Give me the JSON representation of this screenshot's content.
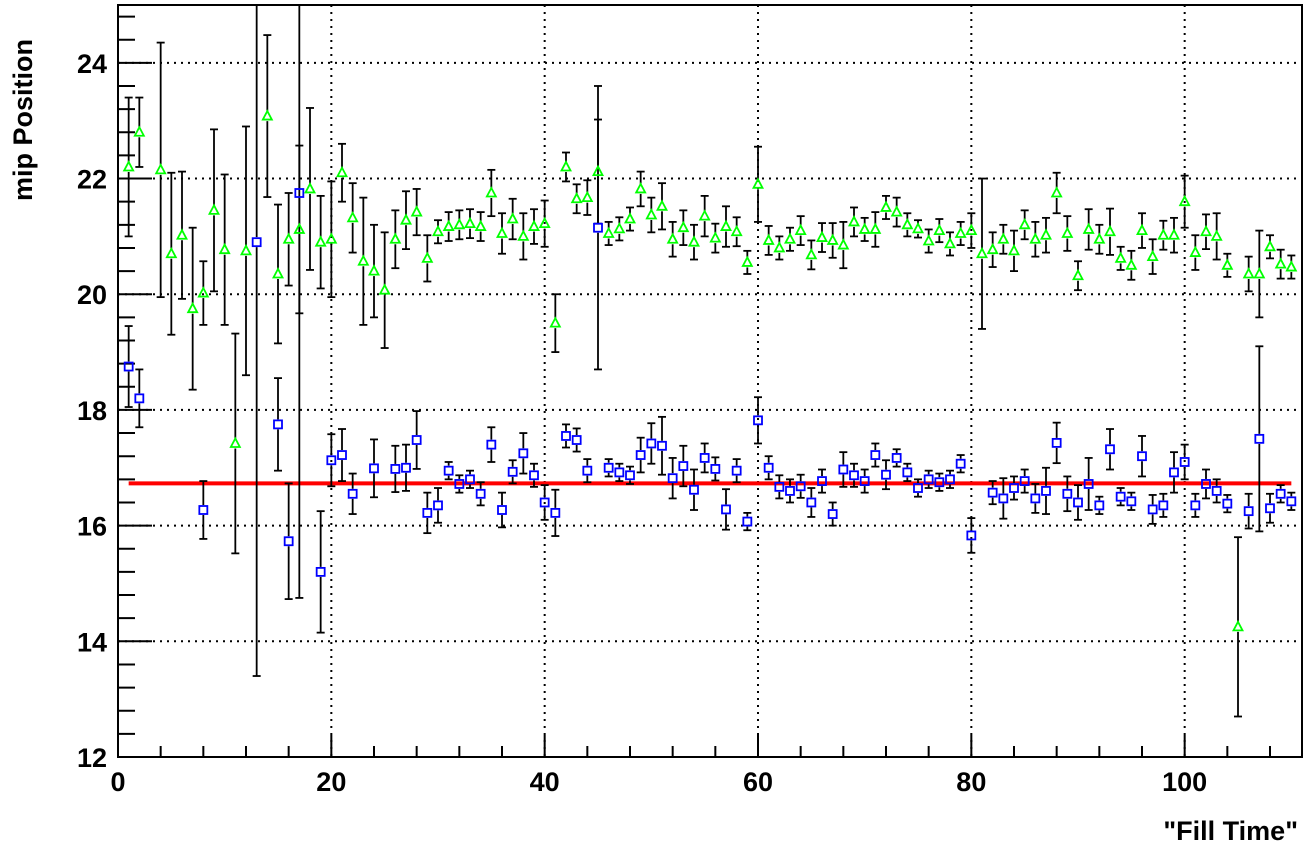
{
  "chart_data": {
    "type": "scatter",
    "title": "",
    "xlabel": "\"Fill Time\"",
    "ylabel": "mip Position",
    "xlim": [
      0,
      111
    ],
    "ylim": [
      12,
      25
    ],
    "x_ticks": [
      0,
      20,
      40,
      60,
      80,
      100
    ],
    "x_tick_labels": [
      "0",
      "20",
      "40",
      "60",
      "80",
      "100"
    ],
    "y_ticks": [
      12,
      14,
      16,
      18,
      20,
      22,
      24
    ],
    "y_tick_labels": [
      "12",
      "14",
      "16",
      "18",
      "20",
      "22",
      "24"
    ],
    "grid": true,
    "legend": "none",
    "colors": {
      "squares": "#0000ff",
      "triangles": "#00ff00",
      "fit_line": "#ff0000",
      "error_bars": "#000000",
      "grid": "#000000"
    },
    "fit_line": {
      "y": 16.73,
      "x_range": [
        1,
        110
      ]
    },
    "series": [
      {
        "marker": "open-square",
        "points": [
          {
            "x": 1,
            "y": 18.75,
            "e": 0.7
          },
          {
            "x": 2,
            "y": 18.2,
            "e": 0.5
          },
          {
            "x": 8,
            "y": 16.27,
            "e": 0.5
          },
          {
            "x": 13,
            "y": 20.9,
            "e": 7.5
          },
          {
            "x": 15,
            "y": 17.75,
            "e": 0.8
          },
          {
            "x": 16,
            "y": 15.73,
            "e": 1.0
          },
          {
            "x": 17,
            "y": 21.75,
            "e": 7.0
          },
          {
            "x": 19,
            "y": 15.2,
            "e": 1.05
          },
          {
            "x": 20,
            "y": 17.13,
            "e": 0.45
          },
          {
            "x": 21,
            "y": 17.22,
            "e": 0.45
          },
          {
            "x": 22,
            "y": 16.55,
            "e": 0.35
          },
          {
            "x": 24,
            "y": 16.99,
            "e": 0.5
          },
          {
            "x": 26,
            "y": 16.98,
            "e": 0.4
          },
          {
            "x": 27,
            "y": 17.0,
            "e": 0.4
          },
          {
            "x": 28,
            "y": 17.48,
            "e": 0.5
          },
          {
            "x": 29,
            "y": 16.22,
            "e": 0.35
          },
          {
            "x": 30,
            "y": 16.35,
            "e": 0.3
          },
          {
            "x": 31,
            "y": 16.95,
            "e": 0.15
          },
          {
            "x": 32,
            "y": 16.72,
            "e": 0.15
          },
          {
            "x": 33,
            "y": 16.8,
            "e": 0.15
          },
          {
            "x": 34,
            "y": 16.55,
            "e": 0.2
          },
          {
            "x": 35,
            "y": 17.4,
            "e": 0.3
          },
          {
            "x": 36,
            "y": 16.27,
            "e": 0.3
          },
          {
            "x": 37,
            "y": 16.93,
            "e": 0.2
          },
          {
            "x": 38,
            "y": 17.25,
            "e": 0.35
          },
          {
            "x": 39,
            "y": 16.87,
            "e": 0.2
          },
          {
            "x": 40,
            "y": 16.4,
            "e": 0.3
          },
          {
            "x": 41,
            "y": 16.22,
            "e": 0.4
          },
          {
            "x": 42,
            "y": 17.55,
            "e": 0.2
          },
          {
            "x": 43,
            "y": 17.48,
            "e": 0.2
          },
          {
            "x": 44,
            "y": 16.95,
            "e": 0.2
          },
          {
            "x": 45,
            "y": 21.15,
            "e": 2.45
          },
          {
            "x": 46,
            "y": 17.0,
            "e": 0.15
          },
          {
            "x": 47,
            "y": 16.92,
            "e": 0.15
          },
          {
            "x": 48,
            "y": 16.87,
            "e": 0.15
          },
          {
            "x": 49,
            "y": 17.22,
            "e": 0.3
          },
          {
            "x": 50,
            "y": 17.42,
            "e": 0.35
          },
          {
            "x": 51,
            "y": 17.38,
            "e": 0.5
          },
          {
            "x": 52,
            "y": 16.82,
            "e": 0.35
          },
          {
            "x": 53,
            "y": 17.03,
            "e": 0.35
          },
          {
            "x": 54,
            "y": 16.62,
            "e": 0.35
          },
          {
            "x": 55,
            "y": 17.17,
            "e": 0.25
          },
          {
            "x": 56,
            "y": 16.98,
            "e": 0.2
          },
          {
            "x": 57,
            "y": 16.28,
            "e": 0.35
          },
          {
            "x": 58,
            "y": 16.95,
            "e": 0.2
          },
          {
            "x": 59,
            "y": 16.07,
            "e": 0.15
          },
          {
            "x": 60,
            "y": 17.82,
            "e": 0.4
          },
          {
            "x": 61,
            "y": 17.0,
            "e": 0.2
          },
          {
            "x": 62,
            "y": 16.67,
            "e": 0.2
          },
          {
            "x": 63,
            "y": 16.6,
            "e": 0.2
          },
          {
            "x": 64,
            "y": 16.68,
            "e": 0.2
          },
          {
            "x": 65,
            "y": 16.4,
            "e": 0.25
          },
          {
            "x": 66,
            "y": 16.77,
            "e": 0.2
          },
          {
            "x": 67,
            "y": 16.2,
            "e": 0.2
          },
          {
            "x": 68,
            "y": 16.97,
            "e": 0.3
          },
          {
            "x": 69,
            "y": 16.87,
            "e": 0.2
          },
          {
            "x": 70,
            "y": 16.77,
            "e": 0.2
          },
          {
            "x": 71,
            "y": 17.22,
            "e": 0.2
          },
          {
            "x": 72,
            "y": 16.88,
            "e": 0.25
          },
          {
            "x": 73,
            "y": 17.17,
            "e": 0.15
          },
          {
            "x": 74,
            "y": 16.92,
            "e": 0.15
          },
          {
            "x": 75,
            "y": 16.65,
            "e": 0.15
          },
          {
            "x": 76,
            "y": 16.8,
            "e": 0.15
          },
          {
            "x": 77,
            "y": 16.75,
            "e": 0.15
          },
          {
            "x": 78,
            "y": 16.8,
            "e": 0.15
          },
          {
            "x": 79,
            "y": 17.07,
            "e": 0.15
          },
          {
            "x": 80,
            "y": 15.83,
            "e": 0.3
          },
          {
            "x": 82,
            "y": 16.57,
            "e": 0.2
          },
          {
            "x": 83,
            "y": 16.47,
            "e": 0.35
          },
          {
            "x": 84,
            "y": 16.65,
            "e": 0.2
          },
          {
            "x": 85,
            "y": 16.77,
            "e": 0.2
          },
          {
            "x": 86,
            "y": 16.47,
            "e": 0.25
          },
          {
            "x": 87,
            "y": 16.6,
            "e": 0.4
          },
          {
            "x": 88,
            "y": 17.43,
            "e": 0.35
          },
          {
            "x": 89,
            "y": 16.55,
            "e": 0.3
          },
          {
            "x": 90,
            "y": 16.4,
            "e": 0.3
          },
          {
            "x": 91,
            "y": 16.72,
            "e": 0.45
          },
          {
            "x": 92,
            "y": 16.35,
            "e": 0.15
          },
          {
            "x": 93,
            "y": 17.32,
            "e": 0.35
          },
          {
            "x": 94,
            "y": 16.5,
            "e": 0.15
          },
          {
            "x": 95,
            "y": 16.42,
            "e": 0.15
          },
          {
            "x": 96,
            "y": 17.2,
            "e": 0.35
          },
          {
            "x": 97,
            "y": 16.28,
            "e": 0.25
          },
          {
            "x": 98,
            "y": 16.35,
            "e": 0.2
          },
          {
            "x": 99,
            "y": 16.92,
            "e": 0.35
          },
          {
            "x": 100,
            "y": 17.1,
            "e": 0.3
          },
          {
            "x": 101,
            "y": 16.35,
            "e": 0.2
          },
          {
            "x": 102,
            "y": 16.72,
            "e": 0.25
          },
          {
            "x": 103,
            "y": 16.6,
            "e": 0.2
          },
          {
            "x": 104,
            "y": 16.38,
            "e": 0.15
          },
          {
            "x": 106,
            "y": 16.25,
            "e": 0.3
          },
          {
            "x": 107,
            "y": 17.5,
            "e": 1.6
          },
          {
            "x": 108,
            "y": 16.3,
            "e": 0.25
          },
          {
            "x": 109,
            "y": 16.55,
            "e": 0.15
          },
          {
            "x": 110,
            "y": 16.42,
            "e": 0.15
          }
        ]
      },
      {
        "marker": "open-triangle",
        "points": [
          {
            "x": 1,
            "y": 22.2,
            "e": 1.2
          },
          {
            "x": 2,
            "y": 22.8,
            "e": 0.6
          },
          {
            "x": 4,
            "y": 22.15,
            "e": 2.2
          },
          {
            "x": 5,
            "y": 20.7,
            "e": 1.4
          },
          {
            "x": 6,
            "y": 21.02,
            "e": 1.1
          },
          {
            "x": 7,
            "y": 19.75,
            "e": 1.4
          },
          {
            "x": 8,
            "y": 20.02,
            "e": 0.55
          },
          {
            "x": 9,
            "y": 21.45,
            "e": 1.4
          },
          {
            "x": 10,
            "y": 20.77,
            "e": 1.3
          },
          {
            "x": 11,
            "y": 17.42,
            "e": 1.9
          },
          {
            "x": 12,
            "y": 20.75,
            "e": 2.15
          },
          {
            "x": 14,
            "y": 23.08,
            "e": 1.4
          },
          {
            "x": 15,
            "y": 20.35,
            "e": 1.2
          },
          {
            "x": 16,
            "y": 20.95,
            "e": 0.8
          },
          {
            "x": 17,
            "y": 21.12,
            "e": 1.45
          },
          {
            "x": 18,
            "y": 21.82,
            "e": 1.4
          },
          {
            "x": 19,
            "y": 20.9,
            "e": 0.8
          },
          {
            "x": 20,
            "y": 20.95,
            "e": 1.0
          },
          {
            "x": 21,
            "y": 22.1,
            "e": 0.5
          },
          {
            "x": 22,
            "y": 21.32,
            "e": 0.6
          },
          {
            "x": 23,
            "y": 20.57,
            "e": 1.1
          },
          {
            "x": 24,
            "y": 20.4,
            "e": 0.8
          },
          {
            "x": 25,
            "y": 20.07,
            "e": 1.0
          },
          {
            "x": 26,
            "y": 20.95,
            "e": 0.5
          },
          {
            "x": 27,
            "y": 21.28,
            "e": 0.5
          },
          {
            "x": 28,
            "y": 21.42,
            "e": 0.4
          },
          {
            "x": 29,
            "y": 20.62,
            "e": 0.4
          },
          {
            "x": 30,
            "y": 21.08,
            "e": 0.2
          },
          {
            "x": 31,
            "y": 21.17,
            "e": 0.25
          },
          {
            "x": 32,
            "y": 21.2,
            "e": 0.25
          },
          {
            "x": 33,
            "y": 21.22,
            "e": 0.25
          },
          {
            "x": 34,
            "y": 21.17,
            "e": 0.25
          },
          {
            "x": 35,
            "y": 21.75,
            "e": 0.4
          },
          {
            "x": 36,
            "y": 21.05,
            "e": 0.35
          },
          {
            "x": 37,
            "y": 21.3,
            "e": 0.35
          },
          {
            "x": 38,
            "y": 21.0,
            "e": 0.4
          },
          {
            "x": 39,
            "y": 21.17,
            "e": 0.3
          },
          {
            "x": 40,
            "y": 21.22,
            "e": 0.4
          },
          {
            "x": 41,
            "y": 19.5,
            "e": 0.5
          },
          {
            "x": 42,
            "y": 22.2,
            "e": 0.25
          },
          {
            "x": 43,
            "y": 21.65,
            "e": 0.25
          },
          {
            "x": 44,
            "y": 21.67,
            "e": 0.3
          },
          {
            "x": 45,
            "y": 22.12,
            "e": 0.9
          },
          {
            "x": 46,
            "y": 21.05,
            "e": 0.2
          },
          {
            "x": 47,
            "y": 21.13,
            "e": 0.2
          },
          {
            "x": 48,
            "y": 21.3,
            "e": 0.2
          },
          {
            "x": 49,
            "y": 21.82,
            "e": 0.3
          },
          {
            "x": 50,
            "y": 21.37,
            "e": 0.3
          },
          {
            "x": 51,
            "y": 21.52,
            "e": 0.4
          },
          {
            "x": 52,
            "y": 20.95,
            "e": 0.3
          },
          {
            "x": 53,
            "y": 21.15,
            "e": 0.3
          },
          {
            "x": 54,
            "y": 20.9,
            "e": 0.3
          },
          {
            "x": 55,
            "y": 21.35,
            "e": 0.35
          },
          {
            "x": 56,
            "y": 20.97,
            "e": 0.25
          },
          {
            "x": 57,
            "y": 21.17,
            "e": 0.35
          },
          {
            "x": 58,
            "y": 21.08,
            "e": 0.25
          },
          {
            "x": 59,
            "y": 20.55,
            "e": 0.2
          },
          {
            "x": 60,
            "y": 21.9,
            "e": 0.65
          },
          {
            "x": 61,
            "y": 20.93,
            "e": 0.25
          },
          {
            "x": 62,
            "y": 20.8,
            "e": 0.2
          },
          {
            "x": 63,
            "y": 20.95,
            "e": 0.2
          },
          {
            "x": 64,
            "y": 21.1,
            "e": 0.25
          },
          {
            "x": 65,
            "y": 20.68,
            "e": 0.25
          },
          {
            "x": 66,
            "y": 20.98,
            "e": 0.25
          },
          {
            "x": 67,
            "y": 20.93,
            "e": 0.3
          },
          {
            "x": 68,
            "y": 20.85,
            "e": 0.4
          },
          {
            "x": 69,
            "y": 21.25,
            "e": 0.25
          },
          {
            "x": 70,
            "y": 21.12,
            "e": 0.2
          },
          {
            "x": 71,
            "y": 21.12,
            "e": 0.3
          },
          {
            "x": 72,
            "y": 21.5,
            "e": 0.2
          },
          {
            "x": 73,
            "y": 21.42,
            "e": 0.25
          },
          {
            "x": 74,
            "y": 21.2,
            "e": 0.2
          },
          {
            "x": 75,
            "y": 21.13,
            "e": 0.15
          },
          {
            "x": 76,
            "y": 20.92,
            "e": 0.2
          },
          {
            "x": 77,
            "y": 21.1,
            "e": 0.2
          },
          {
            "x": 78,
            "y": 20.87,
            "e": 0.2
          },
          {
            "x": 79,
            "y": 21.05,
            "e": 0.2
          },
          {
            "x": 80,
            "y": 21.1,
            "e": 0.3
          },
          {
            "x": 81,
            "y": 20.7,
            "e": 1.3
          },
          {
            "x": 82,
            "y": 20.77,
            "e": 0.3
          },
          {
            "x": 83,
            "y": 20.95,
            "e": 0.25
          },
          {
            "x": 84,
            "y": 20.75,
            "e": 0.35
          },
          {
            "x": 85,
            "y": 21.2,
            "e": 0.25
          },
          {
            "x": 86,
            "y": 20.95,
            "e": 0.3
          },
          {
            "x": 87,
            "y": 21.02,
            "e": 0.3
          },
          {
            "x": 88,
            "y": 21.75,
            "e": 0.35
          },
          {
            "x": 89,
            "y": 21.05,
            "e": 0.3
          },
          {
            "x": 90,
            "y": 20.32,
            "e": 0.25
          },
          {
            "x": 91,
            "y": 21.12,
            "e": 0.35
          },
          {
            "x": 92,
            "y": 20.95,
            "e": 0.25
          },
          {
            "x": 93,
            "y": 21.08,
            "e": 0.4
          },
          {
            "x": 94,
            "y": 20.62,
            "e": 0.2
          },
          {
            "x": 95,
            "y": 20.5,
            "e": 0.25
          },
          {
            "x": 96,
            "y": 21.1,
            "e": 0.3
          },
          {
            "x": 97,
            "y": 20.65,
            "e": 0.3
          },
          {
            "x": 98,
            "y": 21.02,
            "e": 0.25
          },
          {
            "x": 99,
            "y": 21.02,
            "e": 0.3
          },
          {
            "x": 100,
            "y": 21.6,
            "e": 0.45
          },
          {
            "x": 101,
            "y": 20.72,
            "e": 0.3
          },
          {
            "x": 102,
            "y": 21.08,
            "e": 0.3
          },
          {
            "x": 103,
            "y": 21.0,
            "e": 0.4
          },
          {
            "x": 104,
            "y": 20.5,
            "e": 0.2
          },
          {
            "x": 105,
            "y": 14.25,
            "e": 1.55
          },
          {
            "x": 106,
            "y": 20.35,
            "e": 0.3
          },
          {
            "x": 107,
            "y": 20.35,
            "e": 0.75
          },
          {
            "x": 108,
            "y": 20.82,
            "e": 0.2
          },
          {
            "x": 109,
            "y": 20.52,
            "e": 0.25
          },
          {
            "x": 110,
            "y": 20.47,
            "e": 0.2
          }
        ]
      }
    ]
  }
}
